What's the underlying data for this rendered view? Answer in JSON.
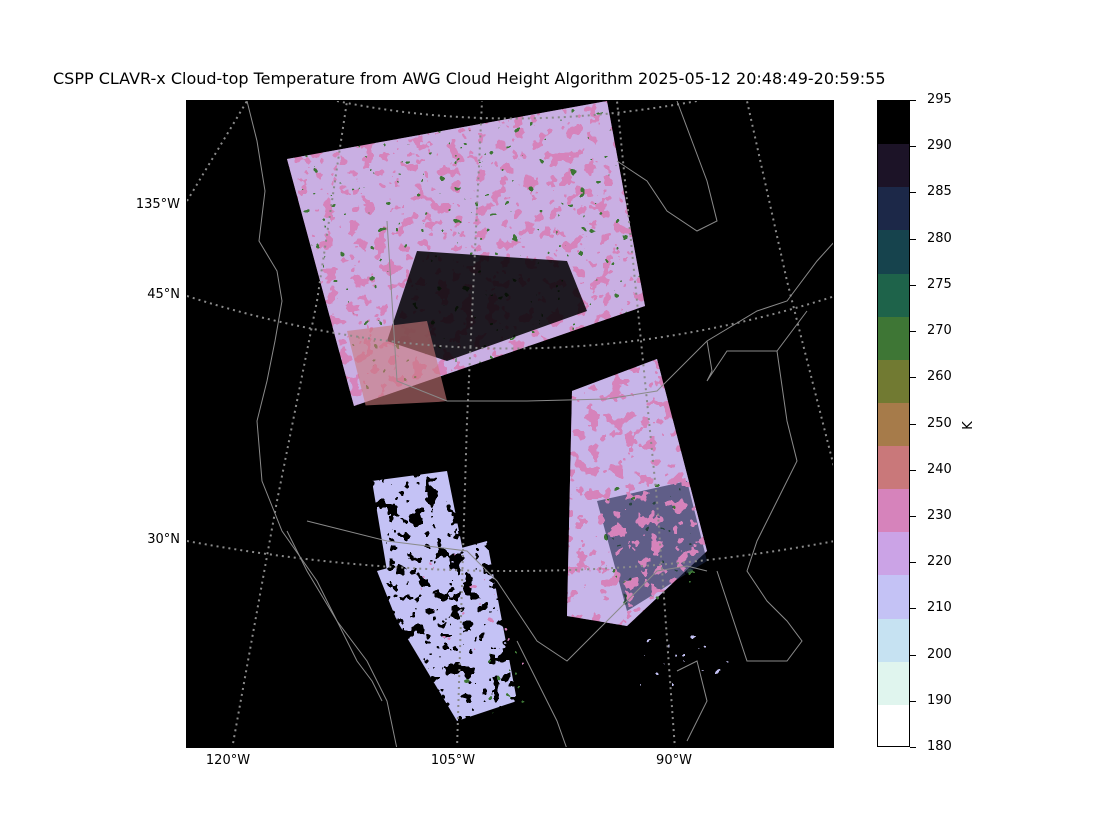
{
  "title": "CSPP CLAVR-x Cloud-top Temperature from AWG Cloud Height Algorithm 2025-05-12 20:48:49-20:59:55",
  "map": {
    "latitude_labels": [
      "135°W",
      "45°N",
      "30°N"
    ],
    "longitude_labels": [
      "120°W",
      "105°W",
      "90°W"
    ],
    "background_color": "#000000",
    "coastline_color": "#8a8a8a",
    "gridline_color": "#8a8a8a"
  },
  "colorbar": {
    "unit": "K",
    "ticks": [
      "180",
      "190",
      "200",
      "210",
      "220",
      "230",
      "240",
      "250",
      "260",
      "270",
      "275",
      "280",
      "285",
      "290",
      "295"
    ],
    "colors": [
      "#ffffff",
      "#e0f5ee",
      "#c6e2f2",
      "#c4c2f5",
      "#cba3e6",
      "#d683bb",
      "#c9787a",
      "#a67b4a",
      "#717a32",
      "#3e7635",
      "#1e634a",
      "#16434d",
      "#1c2848",
      "#1c1327",
      "#000000"
    ]
  },
  "chart_data": {
    "type": "heatmap",
    "title": "CSPP CLAVR-x Cloud-top Temperature from AWG Cloud Height Algorithm 2025-05-12 20:48:49-20:59:55",
    "colorbar_label": "K",
    "colorbar_range": [
      180,
      295
    ],
    "colorbar_ticks": [
      180,
      190,
      200,
      210,
      220,
      230,
      240,
      250,
      260,
      270,
      275,
      280,
      285,
      290,
      295
    ],
    "latitude_ticks": [
      "45°N",
      "30°N"
    ],
    "longitude_ticks": [
      "135°W",
      "120°W",
      "105°W",
      "90°W"
    ]
  }
}
